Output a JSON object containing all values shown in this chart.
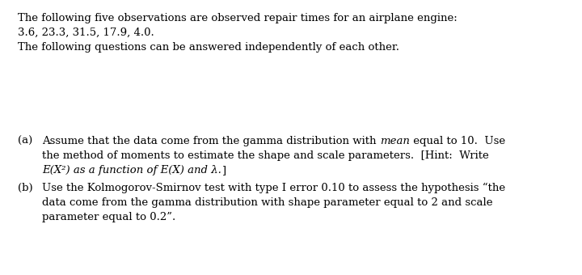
{
  "background_color": "#ffffff",
  "text_color": "#000000",
  "line1": "The following five observations are observed repair times for an airplane engine:",
  "line2": "3.6, 23.3, 31.5, 17.9, 4.0.",
  "line3": "The following questions can be answered independently of each other.",
  "part_a_label": "(a)",
  "part_a_pre_italic": "Assume that the data come from the gamma distribution with ",
  "part_a_italic": "mean",
  "part_a_post_italic": " equal to 10.  Use",
  "part_a_line2": "the method of moments to estimate the shape and scale parameters.  [Hint:  Write",
  "part_a_line3_italic": "E(X²) as a function of E(X) and λ.",
  "part_a_line3_bracket": "|",
  "part_b_label": "(b)",
  "part_b_line1": "Use the Kolmogorov-Smirnov test with type I error 0.10 to assess the hypothesis “the",
  "part_b_line2": "data come from the gamma distribution with shape parameter equal to 2 and scale",
  "part_b_line3": "parameter equal to 0.2”.",
  "fs": 9.5,
  "fig_width": 7.2,
  "fig_height": 3.4,
  "dpi": 100
}
